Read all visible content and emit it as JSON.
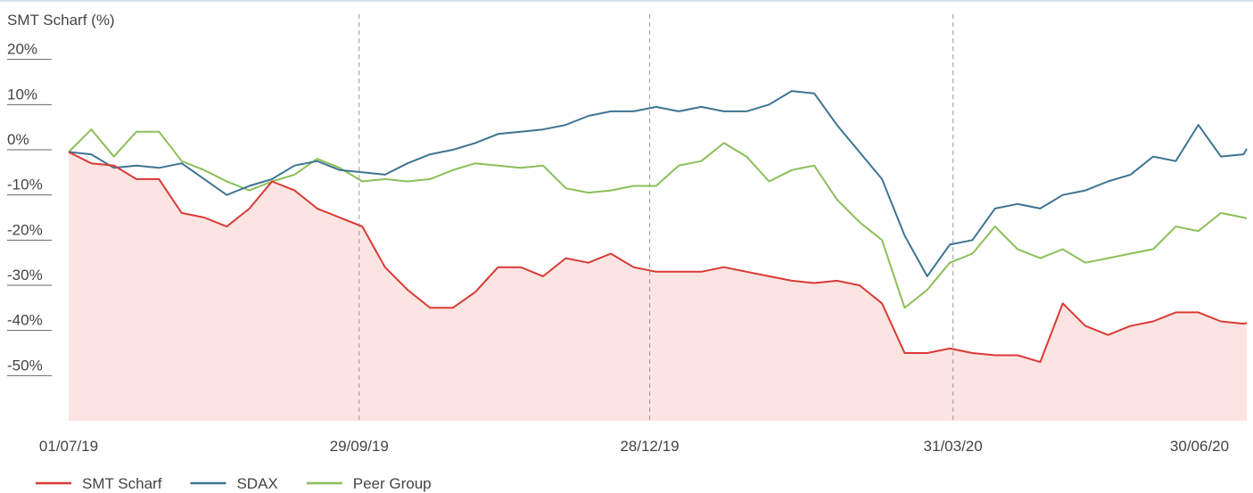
{
  "chart_data": {
    "type": "line",
    "y_label": "SMT Scharf (%)",
    "x": [
      "01/07/19",
      "08/07/19",
      "15/07/19",
      "22/07/19",
      "29/07/19",
      "05/08/19",
      "12/08/19",
      "19/08/19",
      "26/08/19",
      "02/09/19",
      "09/09/19",
      "16/09/19",
      "23/09/19",
      "30/09/19",
      "07/10/19",
      "14/10/19",
      "21/10/19",
      "28/10/19",
      "04/11/19",
      "11/11/19",
      "18/11/19",
      "25/11/19",
      "02/12/19",
      "09/12/19",
      "16/12/19",
      "23/12/19",
      "30/12/19",
      "06/01/20",
      "13/01/20",
      "20/01/20",
      "27/01/20",
      "03/02/20",
      "10/02/20",
      "17/02/20",
      "24/02/20",
      "02/03/20",
      "09/03/20",
      "16/03/20",
      "23/03/20",
      "30/03/20",
      "06/04/20",
      "13/04/20",
      "20/04/20",
      "27/04/20",
      "04/05/20",
      "11/05/20",
      "18/05/20",
      "25/05/20",
      "01/06/20",
      "08/06/20",
      "15/06/20",
      "22/06/20",
      "29/06/20",
      "30/06/20"
    ],
    "series": [
      {
        "name": "SMT Scharf",
        "color": "#d93a34",
        "fill": "#fbe4e2",
        "values": [
          -0.5,
          -3,
          -3.5,
          -6.5,
          -6.5,
          -14,
          -15,
          -17,
          -13,
          -7,
          -9,
          -13,
          -15,
          -17,
          -26,
          -31,
          -35,
          -35,
          -31.5,
          -26,
          -26,
          -28,
          -24,
          -25,
          -23,
          -26,
          -27,
          -27,
          -27,
          -26,
          -27,
          -28,
          -29,
          -29.5,
          -29,
          -30,
          -34,
          -45,
          -45,
          -44,
          -45,
          -45.5,
          -45.5,
          -47,
          -34,
          -39,
          -41,
          -39,
          -38,
          -36,
          -36,
          -38,
          -38.5,
          -38.3
        ]
      },
      {
        "name": "SDAX",
        "color": "#3e7491",
        "values": [
          -0.5,
          -1,
          -4,
          -3.5,
          -4,
          -3,
          -6.5,
          -10,
          -8,
          -6.5,
          -3.5,
          -2.5,
          -4.5,
          -5,
          -5.5,
          -3,
          -1,
          0,
          1.5,
          3.5,
          4,
          4.5,
          5.5,
          7.5,
          8.5,
          8.5,
          9.5,
          8.5,
          9.5,
          8.5,
          8.5,
          10,
          13,
          12.5,
          5.5,
          -0.5,
          -6.5,
          -19,
          -28,
          -21,
          -20,
          -13,
          -12,
          -13,
          -10,
          -9,
          -7,
          -5.5,
          -1.5,
          -2.5,
          5.5,
          -1.5,
          -1,
          0.2
        ]
      },
      {
        "name": "Peer Group",
        "color": "#8bbf5a",
        "values": [
          -0.5,
          4.5,
          -1.5,
          4,
          4,
          -2.5,
          -4.5,
          -7,
          -9,
          -7,
          -5.5,
          -2,
          -4,
          -7,
          -6.5,
          -7,
          -6.5,
          -4.5,
          -3,
          -3.5,
          -4,
          -3.5,
          -8.5,
          -9.5,
          -9,
          -8,
          -8,
          -3.5,
          -2.5,
          1.5,
          -1.5,
          -7,
          -4.5,
          -3.5,
          -11,
          -16,
          -20,
          -35,
          -31,
          -25,
          -23,
          -17,
          -22,
          -24,
          -22,
          -25,
          -24,
          -23,
          -22,
          -17,
          -18,
          -14,
          -15,
          -15.2
        ]
      }
    ],
    "xlim": [
      "01/07/19",
      "30/06/20"
    ],
    "xticks": [
      "01/07/19",
      "29/09/19",
      "28/12/19",
      "31/03/20",
      "30/06/20"
    ],
    "ylim": [
      -60,
      30
    ],
    "yticks": [
      {
        "value": 20,
        "label": "20%"
      },
      {
        "value": 10,
        "label": "10%"
      },
      {
        "value": 0,
        "label": "0%"
      },
      {
        "value": -10,
        "label": "-10%"
      },
      {
        "value": -20,
        "label": "-20%"
      },
      {
        "value": -30,
        "label": "-30%"
      },
      {
        "value": -40,
        "label": "-40%"
      },
      {
        "value": -50,
        "label": "-50%"
      }
    ],
    "legend": "bottom-left"
  }
}
